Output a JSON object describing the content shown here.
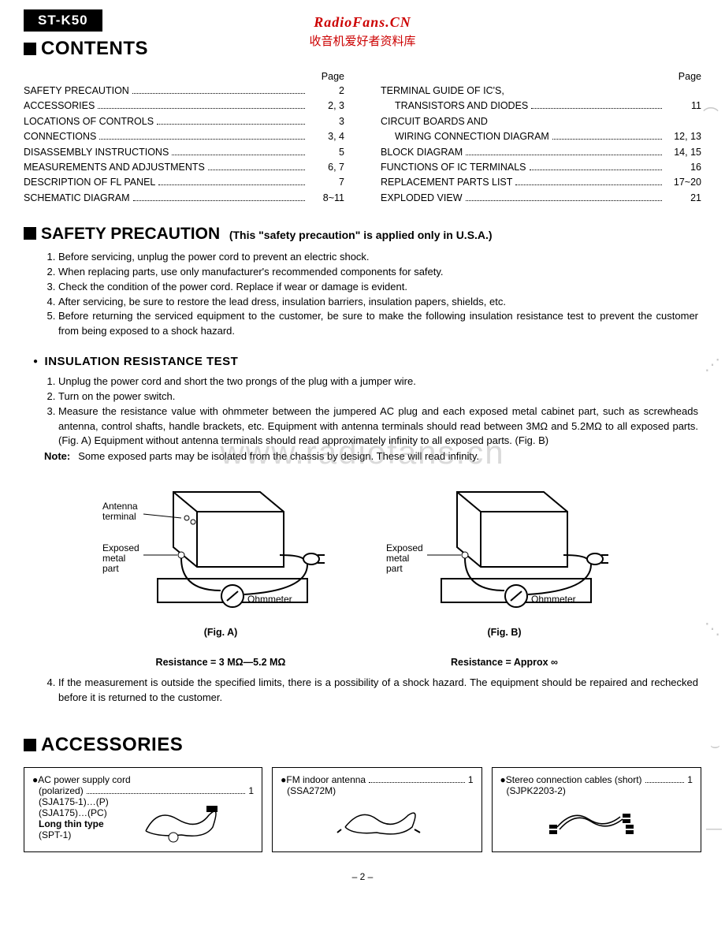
{
  "model": "ST-K50",
  "watermark": {
    "line1": "RadioFans.CN",
    "line2": "收音机爱好者资料库",
    "center": "www.radiofans.cn"
  },
  "sections": {
    "contents": "CONTENTS",
    "safety": "SAFETY PRECAUTION",
    "safety_sub": "(This \"safety precaution\" is applied only in U.S.A.)",
    "insulation": "INSULATION  RESISTANCE  TEST",
    "accessories": "ACCESSORIES"
  },
  "toc": {
    "page_label": "Page",
    "left": [
      {
        "label": "SAFETY PRECAUTION",
        "page": "2"
      },
      {
        "label": "ACCESSORIES",
        "page": "2, 3"
      },
      {
        "label": "LOCATIONS OF CONTROLS",
        "page": "3"
      },
      {
        "label": "CONNECTIONS",
        "page": "3, 4"
      },
      {
        "label": "DISASSEMBLY INSTRUCTIONS",
        "page": "5"
      },
      {
        "label": "MEASUREMENTS AND ADJUSTMENTS",
        "page": "6, 7"
      },
      {
        "label": "DESCRIPTION OF FL PANEL",
        "page": "7"
      },
      {
        "label": "SCHEMATIC DIAGRAM",
        "page": "8~11"
      }
    ],
    "right": [
      {
        "label": "TERMINAL GUIDE OF IC'S,",
        "page": ""
      },
      {
        "label": "TRANSISTORS AND DIODES",
        "page": "11",
        "indent": true
      },
      {
        "label": "CIRCUIT BOARDS AND",
        "page": ""
      },
      {
        "label": "WIRING CONNECTION DIAGRAM",
        "page": "12, 13",
        "indent": true
      },
      {
        "label": "BLOCK DIAGRAM",
        "page": "14, 15"
      },
      {
        "label": "FUNCTIONS OF IC TERMINALS",
        "page": "16"
      },
      {
        "label": "REPLACEMENT PARTS LIST",
        "page": "17~20"
      },
      {
        "label": "EXPLODED VIEW",
        "page": "21"
      }
    ]
  },
  "safety_list": [
    "Before servicing, unplug the power cord to prevent an electric shock.",
    "When replacing parts, use only manufacturer's recommended components for safety.",
    "Check the condition of the power cord.  Replace if wear or damage is evident.",
    "After servicing, be sure to restore the lead dress, insulation barriers, insulation papers, shields, etc.",
    "Before returning the serviced equipment to the customer, be sure to make the following insulation resistance test to prevent the customer from being exposed to a shock hazard."
  ],
  "insulation_list": [
    "Unplug the power cord and short the two prongs of the plug with a jumper wire.",
    "Turn on the power switch.",
    "Measure the resistance value with ohmmeter between the jumpered AC plug and each exposed metal cabinet part, such as screwheads antenna, control shafts, handle brackets, etc.  Equipment with antenna terminals should read between 3MΩ and 5.2MΩ to all exposed parts.  (Fig. A)  Equipment without antenna terminals should read approximately infinity to all exposed parts.  (Fig. B)"
  ],
  "note": {
    "label": "Note:",
    "text": "Some exposed parts may be isolated from the chassis by design.  These will read infinity."
  },
  "figures": {
    "a": {
      "antenna": "Antenna\nterminal",
      "exposed": "Exposed\nmetal\npart",
      "ohm": "Ohmmeter",
      "cap": "(Fig. A)",
      "res": "Resistance = 3 MΩ—5.2 MΩ"
    },
    "b": {
      "exposed": "Exposed\nmetal\npart",
      "ohm": "Ohmmeter",
      "cap": "(Fig. B)",
      "res": "Resistance = Approx  ∞"
    }
  },
  "item4": "If the measurement is outside the specified limits, there is a possibility of a shock hazard.  The equipment should be repaired and rechecked before it is returned to the customer.",
  "accessories": {
    "a": {
      "title": "AC power supply cord",
      "qty": "1",
      "l1": "(polarized)",
      "l2": "(SJA175-1)…(P)",
      "l3": "(SJA175)…(PC)",
      "l4": "Long thin type",
      "l5": "(SPT-1)"
    },
    "b": {
      "title": "FM indoor antenna",
      "qty": "1",
      "l1": "(SSA272M)"
    },
    "c": {
      "title": "Stereo connection cables (short)",
      "qty": "1",
      "l1": "(SJPK2203-2)"
    }
  },
  "pagenum": "– 2 –",
  "colors": {
    "text": "#000000",
    "bg": "#ffffff",
    "accent": "#cc0000",
    "faint": "rgba(150,150,150,0.35)"
  }
}
